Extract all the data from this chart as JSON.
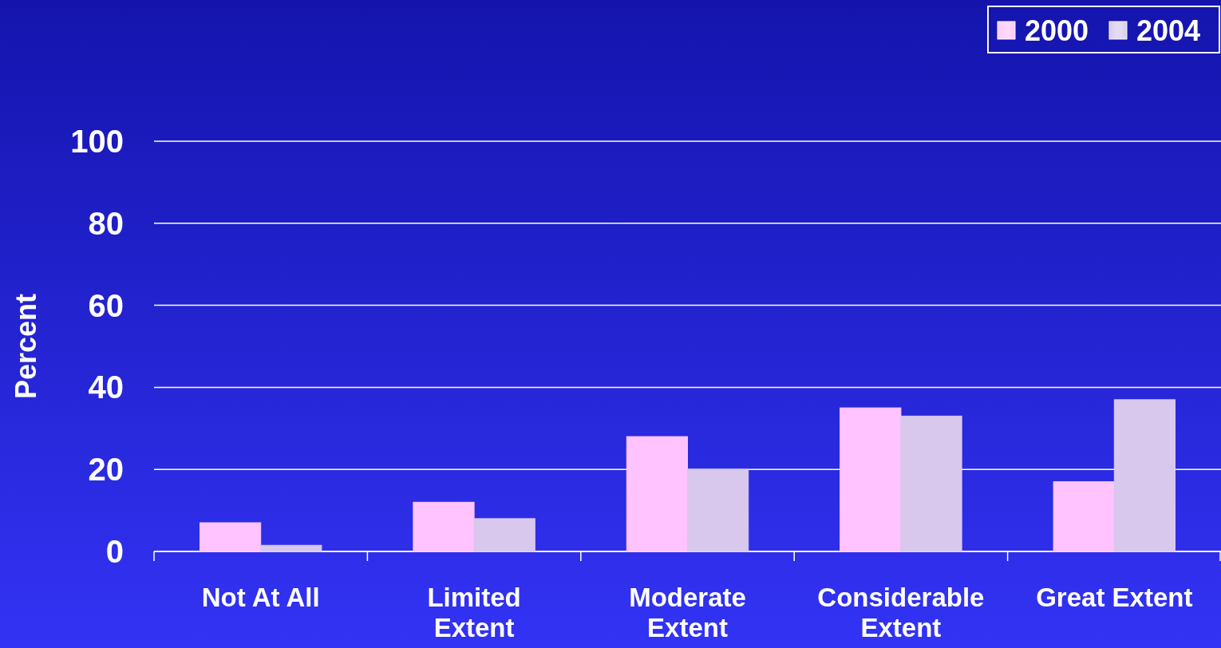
{
  "chart_data": {
    "type": "bar",
    "ylabel": "Percent",
    "categories": [
      "Not At All",
      "Limited Extent",
      "Moderate Extent",
      "Considerable Extent",
      "Great Extent"
    ],
    "series": [
      {
        "name": "2000",
        "color": "#ffc4ff",
        "values": [
          7,
          12,
          28,
          35,
          17
        ]
      },
      {
        "name": "2004",
        "color": "#d8c8ee",
        "values": [
          1.5,
          8,
          20,
          33,
          37
        ]
      }
    ],
    "ylim": [
      0,
      100
    ],
    "yticks": [
      0,
      20,
      40,
      60,
      80,
      100
    ],
    "grid": "y",
    "legend": "top right"
  }
}
